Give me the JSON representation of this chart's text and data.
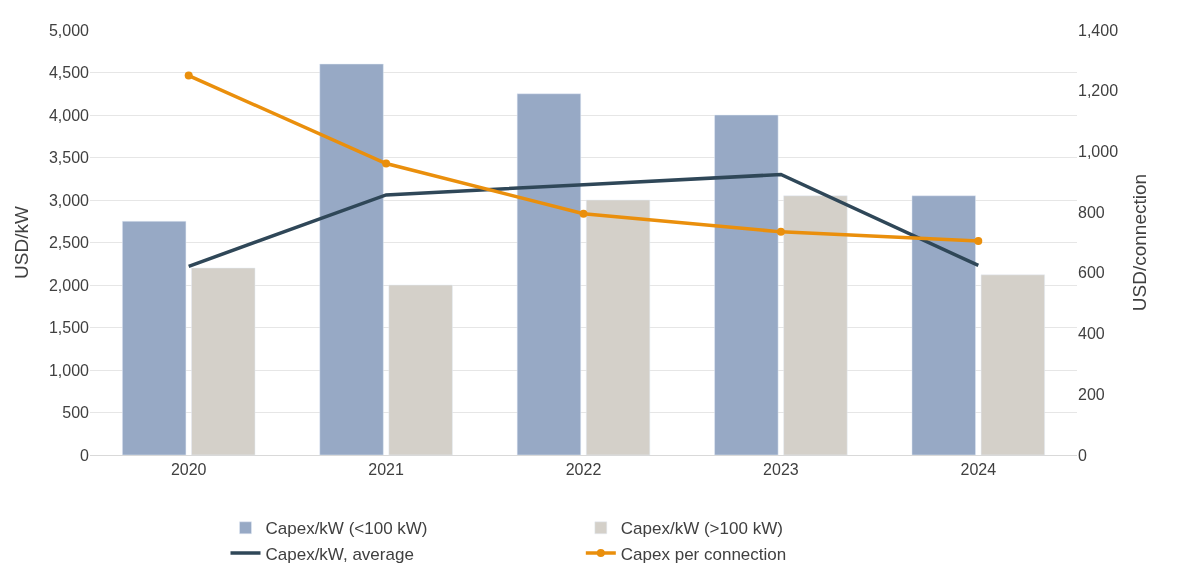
{
  "chart_data": {
    "type": "bar",
    "ylabel": "USD/kW",
    "y2label": "USD/connection",
    "categories": [
      "2020",
      "2021",
      "2022",
      "2023",
      "2024"
    ],
    "series": [
      {
        "name": "Capex/kW (<100 kW)",
        "color": "#97a9c5",
        "values": [
          2750,
          4600,
          4250,
          4000,
          3050
        ]
      },
      {
        "name": "Capex/kW (>100 kW)",
        "color": "#d4d0c9",
        "values": [
          2200,
          2000,
          3000,
          3050,
          2120
        ]
      },
      {
        "name": "Capex/kW, average",
        "type": "line",
        "color": "#2f4758",
        "marker": "none",
        "values": [
          2220,
          3060,
          3180,
          3300,
          2230
        ]
      },
      {
        "name": "Capex per connection",
        "type": "line",
        "axis": "y2",
        "color": "#ea8f0c",
        "marker": "circle",
        "values": [
          1250,
          960,
          795,
          735,
          705
        ]
      }
    ],
    "ylim": [
      0,
      5000
    ],
    "yticks": [
      {
        "value": 0,
        "label": "0"
      },
      {
        "value": 500,
        "label": "500"
      },
      {
        "value": 1000,
        "label": "1,000"
      },
      {
        "value": 1500,
        "label": "1,500"
      },
      {
        "value": 2000,
        "label": "2,000"
      },
      {
        "value": 2500,
        "label": "2,500"
      },
      {
        "value": 3000,
        "label": "3,000"
      },
      {
        "value": 3500,
        "label": "3,500"
      },
      {
        "value": 4000,
        "label": "4,000"
      },
      {
        "value": 4500,
        "label": "4,500"
      },
      {
        "value": 5000,
        "label": "5,000"
      }
    ],
    "y2lim": [
      0,
      1400
    ],
    "y2ticks": [
      {
        "value": 0,
        "label": "0"
      },
      {
        "value": 200,
        "label": "200"
      },
      {
        "value": 400,
        "label": "400"
      },
      {
        "value": 600,
        "label": "600"
      },
      {
        "value": 800,
        "label": "800"
      },
      {
        "value": 1000,
        "label": "1,000"
      },
      {
        "value": 1200,
        "label": "1,200"
      },
      {
        "value": 1400,
        "label": "1,400"
      }
    ],
    "grid": "y",
    "legend": "bottom"
  }
}
